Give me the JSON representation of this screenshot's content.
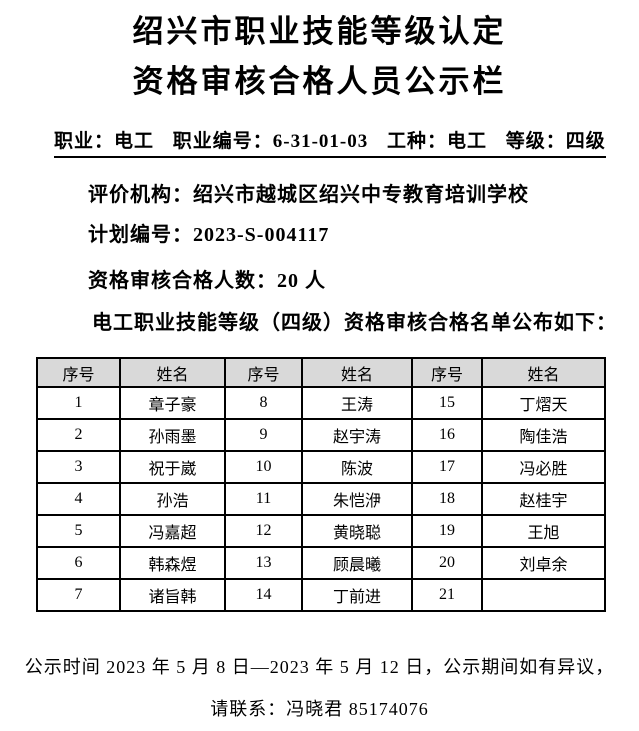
{
  "document": {
    "title_line1": "绍兴市职业技能等级认定",
    "title_line2": "资格审核合格人员公示栏"
  },
  "header_line": {
    "segments": [
      "职业：电工",
      "职业编号：6-31-01-03",
      "工种：电工",
      "等级：四级"
    ]
  },
  "info": {
    "agency": "评价机构：绍兴市越城区绍兴中专教育培训学校",
    "plan_no": "计划编号：2023-S-004117",
    "pass_count": "资格审核合格人数：20 人",
    "list_intro": "电工职业技能等级（四级）资格审核合格名单公布如下："
  },
  "roster_table": {
    "header_bg": "#d9d9d9",
    "headers": [
      "序号",
      "姓名",
      "序号",
      "姓名",
      "序号",
      "姓名"
    ],
    "rows": [
      [
        "1",
        "章子豪",
        "8",
        "王涛",
        "15",
        "丁熠天"
      ],
      [
        "2",
        "孙雨墨",
        "9",
        "赵宇涛",
        "16",
        "陶佳浩"
      ],
      [
        "3",
        "祝于崴",
        "10",
        "陈波",
        "17",
        "冯必胜"
      ],
      [
        "4",
        "孙浩",
        "11",
        "朱恺洢",
        "18",
        "赵桂宇"
      ],
      [
        "5",
        "冯嘉超",
        "12",
        "黄晓聪",
        "19",
        "王旭"
      ],
      [
        "6",
        "韩森煜",
        "13",
        "顾晨曦",
        "20",
        "刘卓余"
      ],
      [
        "7",
        "诸旨韩",
        "14",
        "丁前进",
        "21",
        ""
      ]
    ]
  },
  "footer": {
    "line1": "公示时间 2023 年 5 月 8 日—2023 年 5 月 12 日，公示期间如有异议，",
    "line2": "请联系：冯晓君 85174076"
  }
}
